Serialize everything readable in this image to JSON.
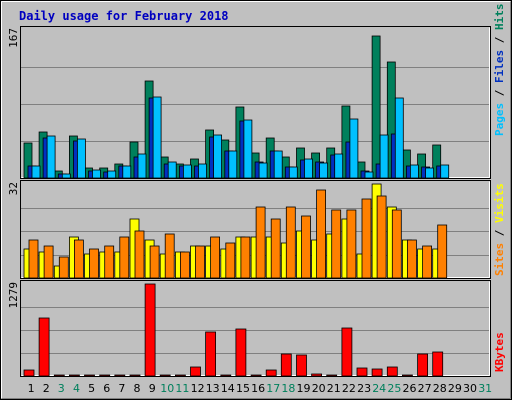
{
  "chart_data": {
    "type": "bar",
    "title": "Daily usage for February 2018",
    "categories": [
      "1",
      "2",
      "3",
      "4",
      "5",
      "6",
      "7",
      "8",
      "9",
      "10",
      "11",
      "12",
      "13",
      "14",
      "15",
      "16",
      "17",
      "18",
      "19",
      "20",
      "21",
      "22",
      "23",
      "24",
      "25",
      "26",
      "27",
      "28",
      "29",
      "30",
      "31"
    ],
    "weekend_days": [
      3,
      4,
      10,
      11,
      17,
      18,
      24,
      25,
      31
    ],
    "panels": [
      {
        "id": "hits-files-pages",
        "ymax": 167,
        "ymax_label": "167",
        "legend": [
          {
            "name": "Pages",
            "color": "#00c0ff"
          },
          {
            "name": " / ",
            "color": "#000000"
          },
          {
            "name": "Files",
            "color": "#0030c0"
          },
          {
            "name": " / ",
            "color": "#000000"
          },
          {
            "name": "Hits",
            "color": "#00805c"
          }
        ],
        "series": [
          {
            "name": "Hits",
            "color": "#00805c",
            "values": [
              40,
              52,
              8,
              47,
              11,
              11,
              16,
              41,
              110,
              24,
              16,
              22,
              54,
              43,
              80,
              28,
              45,
              24,
              34,
              28,
              34,
              81,
              18,
              160,
              131,
              32,
              27,
              37,
              0,
              0,
              0
            ]
          },
          {
            "name": "Files",
            "color": "#0030c0",
            "values": [
              14,
              45,
              4,
              42,
              8,
              7,
              13,
              24,
              90,
              16,
              14,
              14,
              46,
              30,
              64,
              18,
              30,
              12,
              20,
              18,
              26,
              41,
              8,
              16,
              50,
              14,
              12,
              14,
              0,
              0,
              0
            ]
          },
          {
            "name": "Pages",
            "color": "#00c0ff",
            "values": [
              14,
              47,
              4,
              44,
              9,
              8,
              13,
              27,
              91,
              18,
              15,
              16,
              48,
              31,
              65,
              17,
              31,
              12,
              22,
              17,
              27,
              67,
              7,
              49,
              90,
              15,
              11,
              15,
              0,
              0,
              0
            ]
          }
        ]
      },
      {
        "id": "visits-sites",
        "ymax": 32,
        "ymax_label": "32",
        "legend": [
          {
            "name": "Sites",
            "color": "#ff8000"
          },
          {
            "name": " / ",
            "color": "#000000"
          },
          {
            "name": "Visits",
            "color": "#ffff00"
          }
        ],
        "series": [
          {
            "name": "Visits",
            "color": "#ffff00",
            "values": [
              10,
              9,
              4,
              14,
              8,
              9,
              9,
              20,
              13,
              8,
              9,
              11,
              11,
              10,
              14,
              14,
              14,
              12,
              16,
              13,
              15,
              20,
              8,
              32,
              24,
              13,
              10,
              10,
              0,
              0,
              0
            ]
          },
          {
            "name": "Sites",
            "color": "#ff8000",
            "values": [
              13,
              11,
              7,
              13,
              10,
              11,
              14,
              16,
              11,
              15,
              9,
              11,
              14,
              12,
              14,
              24,
              20,
              24,
              21,
              30,
              23,
              23,
              27,
              28,
              23,
              13,
              11,
              18,
              0,
              0,
              0
            ]
          }
        ]
      },
      {
        "id": "kbytes",
        "ymax": 1279,
        "ymax_label": "1279",
        "legend": [
          {
            "name": "KBytes",
            "color": "#ff0000"
          }
        ],
        "series": [
          {
            "name": "KBytes",
            "color": "#ff0000",
            "values": [
              90,
              800,
              20,
              20,
              20,
              20,
              20,
              20,
              1279,
              20,
              20,
              120,
              610,
              20,
              650,
              20,
              80,
              300,
              290,
              30,
              20,
              670,
              110,
              100,
              120,
              20,
              310,
              340,
              0,
              0,
              0
            ]
          }
        ]
      }
    ]
  }
}
